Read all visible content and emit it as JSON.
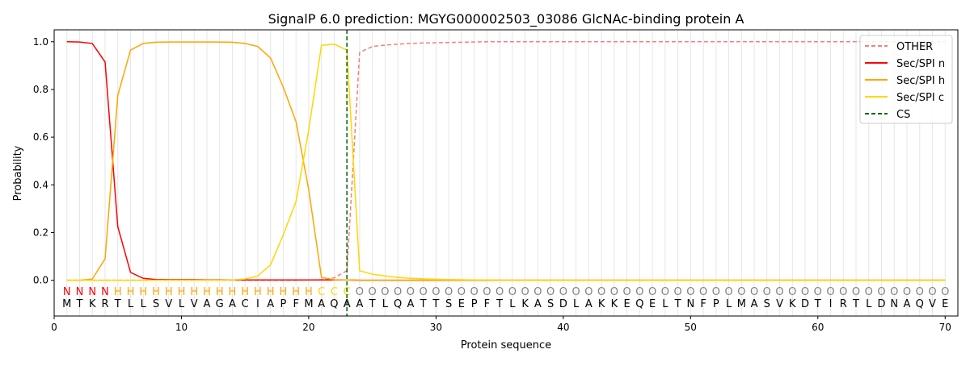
{
  "chart_data": {
    "type": "line",
    "title": "SignalP 6.0 prediction: MGYG000002503_03086 GlcNAc-binding protein A",
    "xlabel": "Protein sequence",
    "ylabel": "Probability",
    "xlim": [
      0,
      71
    ],
    "ylim": [
      -0.15,
      1.05
    ],
    "xticks": [
      0,
      10,
      20,
      30,
      40,
      50,
      60,
      70
    ],
    "yticks": [
      0.0,
      0.2,
      0.4,
      0.6,
      0.8,
      1.0
    ],
    "legend_placement": "top-right",
    "sequence": "MTKRTLLSVLVAGACIAPFMAQAATLQATTSEPFTLKASDLAKKEQELTNFPLMASVKDTIRTLDNAQVE",
    "region_labels": "NNNNHHHHHHHHHHHHHHHHCCCOOOOOOOOOOOOOOOOOOOOOOOOOOOOOOOOOOOOOOOOOOOOOOO",
    "region_label_colors": {
      "N": "#ff0000",
      "H": "#ffa500",
      "C": "#ffd700",
      "O": "#808080"
    },
    "cleavage_site": 23,
    "series": [
      {
        "name": "OTHER",
        "color": "#f08080",
        "dash": true,
        "values": [
          0,
          0,
          0,
          0,
          0,
          0,
          0,
          0,
          0,
          0,
          0,
          0,
          0,
          0,
          0,
          0,
          0,
          0,
          0,
          0.001,
          0.002,
          0.01,
          0.04,
          0.955,
          0.98,
          0.986,
          0.99,
          0.993,
          0.995,
          0.996,
          0.997,
          0.998,
          0.999,
          1,
          1,
          1,
          1,
          1,
          1,
          1,
          1,
          1,
          1,
          1,
          1,
          1,
          1,
          1,
          1,
          1,
          1,
          1,
          1,
          1,
          1,
          1,
          1,
          1,
          1,
          1,
          1,
          1,
          1,
          1,
          1,
          1,
          1,
          1,
          1,
          1
        ]
      },
      {
        "name": "Sec/SPI n",
        "color": "#ff0000",
        "dash": false,
        "values": [
          1.0,
          0.999,
          0.993,
          0.915,
          0.225,
          0.033,
          0.008,
          0.003,
          0.002,
          0.002,
          0.002,
          0.001,
          0.001,
          0.001,
          0.001,
          0.001,
          0.001,
          0.001,
          0.001,
          0.001,
          0.001,
          0.001,
          0.001,
          0,
          0,
          0,
          0,
          0,
          0,
          0,
          0,
          0,
          0,
          0,
          0,
          0,
          0,
          0,
          0,
          0,
          0,
          0,
          0,
          0,
          0,
          0,
          0,
          0,
          0,
          0,
          0,
          0,
          0,
          0,
          0,
          0,
          0,
          0,
          0,
          0,
          0,
          0,
          0,
          0,
          0,
          0,
          0,
          0,
          0,
          0
        ]
      },
      {
        "name": "Sec/SPI h",
        "color": "#ffa500",
        "dash": false,
        "values": [
          0,
          0,
          0.005,
          0.09,
          0.775,
          0.965,
          0.993,
          0.998,
          0.999,
          0.999,
          0.999,
          0.999,
          0.999,
          0.998,
          0.993,
          0.98,
          0.932,
          0.81,
          0.665,
          0.38,
          0.012,
          0.002,
          0.001,
          0,
          0,
          0,
          0,
          0,
          0,
          0,
          0,
          0,
          0,
          0,
          0,
          0,
          0,
          0,
          0,
          0,
          0,
          0,
          0,
          0,
          0,
          0,
          0,
          0,
          0,
          0,
          0,
          0,
          0,
          0,
          0,
          0,
          0,
          0,
          0,
          0,
          0,
          0,
          0,
          0,
          0,
          0,
          0,
          0,
          0,
          0
        ]
      },
      {
        "name": "Sec/SPI c",
        "color": "#ffd700",
        "dash": false,
        "values": [
          0,
          0,
          0,
          0,
          0,
          0,
          0,
          0,
          0,
          0,
          0,
          0,
          0,
          0.001,
          0.005,
          0.018,
          0.065,
          0.19,
          0.33,
          0.63,
          0.985,
          0.99,
          0.965,
          0.04,
          0.025,
          0.018,
          0.012,
          0.008,
          0.006,
          0.004,
          0.003,
          0.002,
          0.001,
          0.001,
          0,
          0,
          0,
          0,
          0,
          0,
          0,
          0,
          0,
          0,
          0,
          0,
          0,
          0,
          0,
          0,
          0,
          0,
          0,
          0,
          0,
          0,
          0,
          0,
          0,
          0,
          0,
          0,
          0,
          0,
          0,
          0,
          0,
          0,
          0,
          0
        ]
      },
      {
        "name": "CS",
        "color": "#006400",
        "dash": true,
        "values": []
      }
    ]
  }
}
